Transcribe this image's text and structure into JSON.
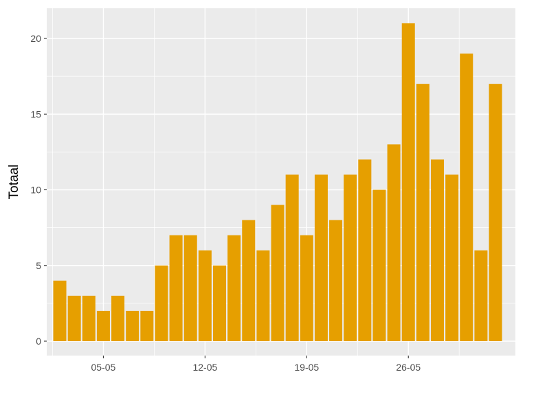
{
  "chart_data": {
    "type": "bar",
    "xlabel": "",
    "ylabel": "Totaal",
    "ylim": [
      0,
      21
    ],
    "yticks": [
      0,
      5,
      10,
      15,
      20
    ],
    "x_tick_labels": [
      "05-05",
      "12-05",
      "19-05",
      "26-05"
    ],
    "x_tick_dates": [
      "05-05",
      "12-05",
      "19-05",
      "26-05"
    ],
    "categories": [
      "02-05",
      "03-05",
      "04-05",
      "05-05",
      "06-05",
      "07-05",
      "08-05",
      "09-05",
      "10-05",
      "11-05",
      "12-05",
      "13-05",
      "14-05",
      "15-05",
      "16-05",
      "17-05",
      "18-05",
      "19-05",
      "20-05",
      "21-05",
      "22-05",
      "23-05",
      "24-05",
      "25-05",
      "26-05",
      "27-05",
      "28-05",
      "29-05",
      "30-05",
      "31-05",
      "01-06"
    ],
    "values": [
      4,
      3,
      3,
      2,
      3,
      2,
      2,
      5,
      7,
      7,
      6,
      5,
      7,
      8,
      6,
      9,
      11,
      7,
      11,
      8,
      11,
      12,
      10,
      13,
      21,
      17,
      12,
      11,
      19,
      6,
      17
    ],
    "bar_color": "#E69F00",
    "panel_background": "#EBEBEB",
    "grid_color": "#FFFFFF",
    "grid": true,
    "legend": "none"
  }
}
